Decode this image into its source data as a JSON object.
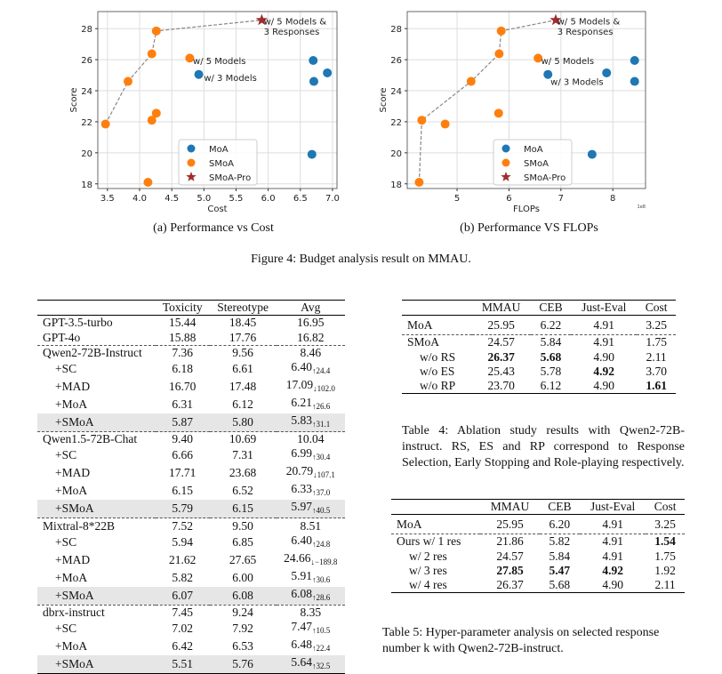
{
  "figure": {
    "caption": "Figure 4: Budget analysis result on MMAU."
  },
  "chart_data": [
    {
      "type": "scatter",
      "subcaption": "(a) Performance vs Cost",
      "xlabel": "Cost",
      "ylabel": "Score",
      "xlim": [
        3.35,
        7.07
      ],
      "ylim": [
        17.7,
        29.1
      ],
      "xticks": [
        "3.5",
        "4.0",
        "4.5",
        "5.0",
        "5.5",
        "6.0",
        "6.5",
        "7.0"
      ],
      "xtickvals": [
        3.5,
        4.0,
        4.5,
        5.0,
        5.5,
        6.0,
        6.5,
        7.0
      ],
      "yticks": [
        "18",
        "20",
        "22",
        "24",
        "26",
        "28"
      ],
      "ytickvals": [
        18,
        20,
        22,
        24,
        26,
        28
      ],
      "grid": true,
      "legend": "bottom-center",
      "offset_label": "",
      "series": [
        {
          "name": "MoA",
          "color": "#1f77b4",
          "marker": "circle",
          "points": [
            [
              4.92,
              25.05
            ],
            [
              6.7,
              25.95
            ],
            [
              6.92,
              25.15
            ],
            [
              6.71,
              24.6
            ],
            [
              6.68,
              19.9
            ]
          ]
        },
        {
          "name": "SMoA",
          "color": "#ff7f0e",
          "marker": "circle",
          "points": [
            [
              3.47,
              21.85
            ],
            [
              3.82,
              24.6
            ],
            [
              4.19,
              26.38
            ],
            [
              4.26,
              27.85
            ],
            [
              4.78,
              26.1
            ],
            [
              4.19,
              22.1
            ],
            [
              4.26,
              22.55
            ],
            [
              4.13,
              18.1
            ]
          ]
        },
        {
          "name": "SMoA-Pro",
          "color": "#a02c2c",
          "marker": "star",
          "points": [
            [
              5.9,
              28.55
            ]
          ]
        }
      ],
      "frontier": [
        [
          3.47,
          21.85
        ],
        [
          3.82,
          24.6
        ],
        [
          4.19,
          26.38
        ],
        [
          4.26,
          27.85
        ],
        [
          5.9,
          28.55
        ]
      ],
      "annotations": [
        {
          "text": "w/ 5 Models &",
          "x": 5.93,
          "y": 28.5
        },
        {
          "text": "3 Responses",
          "x": 5.93,
          "y": 27.85
        },
        {
          "text": "w/ 5 Models",
          "x": 4.83,
          "y": 25.95
        },
        {
          "text": "w/ 3 Models",
          "x": 5.0,
          "y": 24.85
        }
      ]
    },
    {
      "type": "scatter",
      "subcaption": "(b) Performance VS FLOPs",
      "xlabel": "FLOPs",
      "ylabel": "Score",
      "xlim": [
        4.04,
        8.63
      ],
      "ylim": [
        17.7,
        29.1
      ],
      "xticks": [
        "5",
        "6",
        "7",
        "8"
      ],
      "xtickvals": [
        5,
        6,
        7,
        8
      ],
      "yticks": [
        "18",
        "20",
        "22",
        "24",
        "26",
        "28"
      ],
      "ytickvals": [
        18,
        20,
        22,
        24,
        26,
        28
      ],
      "grid": true,
      "legend": "bottom-center",
      "offset_label": "1e8",
      "series": [
        {
          "name": "MoA",
          "color": "#1f77b4",
          "marker": "circle",
          "points": [
            [
              6.75,
              25.05
            ],
            [
              7.88,
              25.15
            ],
            [
              8.42,
              25.95
            ],
            [
              8.42,
              24.6
            ],
            [
              7.6,
              19.9
            ]
          ]
        },
        {
          "name": "SMoA",
          "color": "#ff7f0e",
          "marker": "circle",
          "points": [
            [
              4.27,
              18.1
            ],
            [
              4.32,
              22.1
            ],
            [
              4.77,
              21.85
            ],
            [
              5.27,
              24.6
            ],
            [
              5.81,
              26.38
            ],
            [
              5.85,
              27.85
            ],
            [
              5.8,
              22.55
            ],
            [
              6.56,
              26.1
            ]
          ]
        },
        {
          "name": "SMoA-Pro",
          "color": "#a02c2c",
          "marker": "star",
          "points": [
            [
              6.9,
              28.55
            ]
          ]
        }
      ],
      "frontier": [
        [
          4.27,
          18.1
        ],
        [
          4.32,
          22.1
        ],
        [
          5.27,
          24.6
        ],
        [
          5.81,
          26.38
        ],
        [
          5.85,
          27.85
        ],
        [
          6.9,
          28.55
        ]
      ],
      "annotations": [
        {
          "text": "w/ 5 Models &",
          "x": 6.93,
          "y": 28.5
        },
        {
          "text": "3 Responses",
          "x": 6.93,
          "y": 27.85
        },
        {
          "text": "w/ 5 Models",
          "x": 6.62,
          "y": 25.95
        },
        {
          "text": "w/ 3 Models",
          "x": 6.8,
          "y": 24.6
        }
      ]
    }
  ],
  "table3": {
    "headers": [
      "",
      "Toxicity",
      "Stereotype",
      "Avg"
    ],
    "groups": [
      [
        {
          "name": "GPT-3.5-turbo",
          "tox": "15.44",
          "ste": "18.45",
          "avg": "16.95",
          "sub": ""
        },
        {
          "name": "GPT-4o",
          "tox": "15.88",
          "ste": "17.76",
          "avg": "16.82",
          "sub": ""
        }
      ],
      [
        {
          "name": "Qwen2-72B-Instruct",
          "tox": "7.36",
          "ste": "9.56",
          "avg": "8.46",
          "sub": ""
        },
        {
          "name": "+SC",
          "tox": "6.18",
          "ste": "6.61",
          "avg": "6.40",
          "sub": "↑24.4"
        },
        {
          "name": "+MAD",
          "tox": "16.70",
          "ste": "17.48",
          "avg": "17.09",
          "sub": "↓102.0"
        },
        {
          "name": "+MoA",
          "tox": "6.31",
          "ste": "6.12",
          "avg": "6.21",
          "sub": "↑26.6"
        },
        {
          "name": "+SMoA",
          "tox": "5.87",
          "ste": "5.80",
          "avg": "5.83",
          "sub": "↑31.1"
        }
      ],
      [
        {
          "name": "Qwen1.5-72B-Chat",
          "tox": "9.40",
          "ste": "10.69",
          "avg": "10.04",
          "sub": ""
        },
        {
          "name": "+SC",
          "tox": "6.66",
          "ste": "7.31",
          "avg": "6.99",
          "sub": "↑30.4"
        },
        {
          "name": "+MAD",
          "tox": "17.71",
          "ste": "23.68",
          "avg": "20.79",
          "sub": "↓107.1"
        },
        {
          "name": "+MoA",
          "tox": "6.15",
          "ste": "6.52",
          "avg": "6.33",
          "sub": "↑37.0"
        },
        {
          "name": "+SMoA",
          "tox": "5.79",
          "ste": "6.15",
          "avg": "5.97",
          "sub": "↑40.5"
        }
      ],
      [
        {
          "name": "Mixtral-8*22B",
          "tox": "7.52",
          "ste": "9.50",
          "avg": "8.51",
          "sub": ""
        },
        {
          "name": "+SC",
          "tox": "5.94",
          "ste": "6.85",
          "avg": "6.40",
          "sub": "↑24.8"
        },
        {
          "name": "+MAD",
          "tox": "21.62",
          "ste": "27.65",
          "avg": "24.66",
          "sub": "↓−189.8"
        },
        {
          "name": "+MoA",
          "tox": "5.82",
          "ste": "6.00",
          "avg": "5.91",
          "sub": "↑30.6"
        },
        {
          "name": "+SMoA",
          "tox": "6.07",
          "ste": "6.08",
          "avg": "6.08",
          "sub": "↑28.6"
        }
      ],
      [
        {
          "name": "dbrx-instruct",
          "tox": "7.45",
          "ste": "9.24",
          "avg": "8.35",
          "sub": ""
        },
        {
          "name": "+SC",
          "tox": "7.02",
          "ste": "7.92",
          "avg": "7.47",
          "sub": "↑10.5"
        },
        {
          "name": "+MoA",
          "tox": "6.42",
          "ste": "6.53",
          "avg": "6.48",
          "sub": "↑22.4"
        },
        {
          "name": "+SMoA",
          "tox": "5.51",
          "ste": "5.76",
          "avg": "5.64",
          "sub": "↑32.5"
        }
      ]
    ]
  },
  "table4": {
    "headers": [
      "",
      "MMAU",
      "CEB",
      "Just-Eval",
      "Cost"
    ],
    "rows": [
      [
        "MoA",
        "25.95",
        "6.22",
        "4.91",
        "3.25"
      ],
      [
        "SMoA",
        "24.57",
        "5.84",
        "4.91",
        "1.75"
      ],
      [
        "w/o RS",
        "26.37",
        "5.68",
        "4.90",
        "2.11"
      ],
      [
        "w/o ES",
        "25.43",
        "5.78",
        "4.92",
        "3.70"
      ],
      [
        "w/o RP",
        "23.70",
        "6.12",
        "4.90",
        "1.61"
      ]
    ],
    "bold": [
      [
        2,
        1
      ],
      [
        2,
        2
      ],
      [
        3,
        3
      ],
      [
        4,
        4
      ]
    ],
    "caption": "Table 4: Ablation study results with Qwen2-72B-instruct. RS, ES and RP correspond to Response Selection, Early Stopping and Role-playing respectively."
  },
  "table5": {
    "headers": [
      "",
      "MMAU",
      "CEB",
      "Just-Eval",
      "Cost"
    ],
    "rows": [
      [
        "MoA",
        "25.95",
        "6.20",
        "4.91",
        "3.25"
      ],
      [
        "Ours w/ 1 res",
        "21.86",
        "5.82",
        "4.91",
        "1.54"
      ],
      [
        "w/ 2 res",
        "24.57",
        "5.84",
        "4.91",
        "1.75"
      ],
      [
        "w/ 3 res",
        "27.85",
        "5.47",
        "4.92",
        "1.92"
      ],
      [
        "w/ 4 res",
        "26.37",
        "5.68",
        "4.90",
        "2.11"
      ]
    ],
    "bold": [
      [
        1,
        4
      ],
      [
        3,
        1
      ],
      [
        3,
        2
      ],
      [
        3,
        3
      ]
    ],
    "caption": "Table 5: Hyper-parameter analysis on selected response number k with Qwen2-72B-instruct."
  }
}
